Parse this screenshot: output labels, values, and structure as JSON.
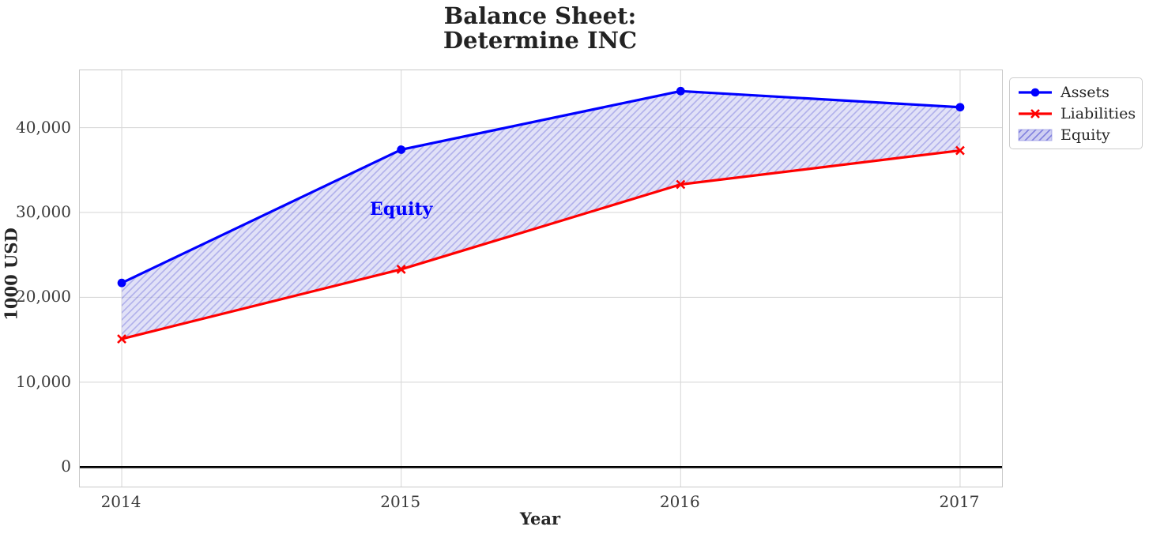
{
  "chart_data": {
    "type": "area",
    "title": "Balance Sheet:\n Determine INC",
    "xlabel": "Year",
    "ylabel": "1000 USD",
    "x": [
      2014,
      2015,
      2016,
      2017
    ],
    "series": [
      {
        "name": "Assets",
        "values": [
          21700,
          37400,
          44300,
          42400
        ],
        "color": "#0000ff",
        "marker": "circle"
      },
      {
        "name": "Liabilities",
        "values": [
          15100,
          23300,
          33300,
          37300
        ],
        "color": "#ff0000",
        "marker": "x"
      }
    ],
    "equity": {
      "name": "Equity",
      "values": [
        6600,
        14100,
        11000,
        5100
      ],
      "fill_color": "#cfcff2",
      "hatch_color": "#7f7fde",
      "hatch": "//",
      "opacity": 0.62
    },
    "annotation": {
      "text": "Equity",
      "x": 2015,
      "y": 30400,
      "color": "#0000ff"
    },
    "xticks": [
      2014,
      2015,
      2016,
      2017
    ],
    "xtick_labels": [
      "2014",
      "2015",
      "2016",
      "2017"
    ],
    "yticks": [
      0,
      10000,
      20000,
      30000,
      40000
    ],
    "ytick_labels": [
      "0",
      "10,000",
      "20,000",
      "30,000",
      "40,000"
    ],
    "xlim": [
      2013.85,
      2017.15
    ],
    "ylim": [
      -2300,
      46750
    ],
    "grid": true,
    "grid_color": "#d9d9d9",
    "spine_color": "#c9c9c9",
    "zero_line_color": "#000000",
    "legend_position": "upper-right",
    "legend": {
      "items": [
        "Assets",
        "Liabilities",
        "Equity"
      ]
    }
  }
}
